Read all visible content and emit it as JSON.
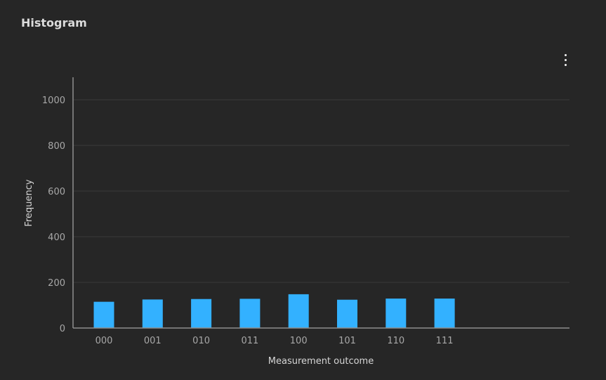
{
  "panel": {
    "title": "Histogram",
    "menu_icon": "overflow-menu-vertical-icon"
  },
  "colors": {
    "background": "#262626",
    "bar": "#33b1ff",
    "grid": "#393939",
    "axis": "#8d8d8d"
  },
  "chart_data": {
    "type": "bar",
    "title": "",
    "xlabel": "Measurement outcome",
    "ylabel": "Frequency",
    "categories": [
      "000",
      "001",
      "010",
      "011",
      "100",
      "101",
      "110",
      "111"
    ],
    "values": [
      115,
      125,
      127,
      128,
      148,
      124,
      129,
      129
    ],
    "ylim": [
      0,
      1100
    ],
    "yticks": [
      0,
      200,
      400,
      600,
      800,
      1000
    ],
    "grid": true
  }
}
